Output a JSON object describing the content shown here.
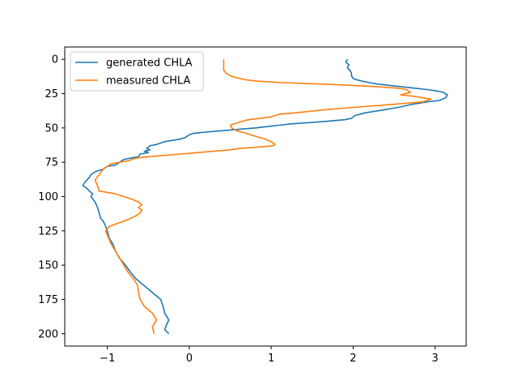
{
  "chart_data": {
    "type": "line",
    "title": "",
    "xlabel": "",
    "ylabel": "",
    "xlim": [
      -1.52,
      3.38
    ],
    "ylim": [
      209,
      -9
    ],
    "y_inverted": true,
    "grid": false,
    "legend_position": "top-left",
    "x_ticks": [
      {
        "value": -1,
        "label": "−1"
      },
      {
        "value": 0,
        "label": "0"
      },
      {
        "value": 1,
        "label": "1"
      },
      {
        "value": 2,
        "label": "2"
      },
      {
        "value": 3,
        "label": "3"
      }
    ],
    "y_ticks": [
      {
        "value": 0,
        "label": "0"
      },
      {
        "value": 25,
        "label": "25"
      },
      {
        "value": 50,
        "label": "50"
      },
      {
        "value": 75,
        "label": "75"
      },
      {
        "value": 100,
        "label": "100"
      },
      {
        "value": 125,
        "label": "125"
      },
      {
        "value": 150,
        "label": "150"
      },
      {
        "value": 175,
        "label": "175"
      },
      {
        "value": 200,
        "label": "200"
      }
    ],
    "series": [
      {
        "name": "generated CHLA",
        "color": "#1f77b4",
        "points": [
          [
            1.93,
            0
          ],
          [
            1.91,
            2
          ],
          [
            1.95,
            4
          ],
          [
            1.93,
            6
          ],
          [
            1.96,
            8
          ],
          [
            1.98,
            10
          ],
          [
            1.98,
            12
          ],
          [
            2.0,
            14
          ],
          [
            2.05,
            15
          ],
          [
            2.12,
            16
          ],
          [
            2.2,
            17
          ],
          [
            2.3,
            18
          ],
          [
            2.45,
            19
          ],
          [
            2.6,
            20
          ],
          [
            2.75,
            21
          ],
          [
            2.9,
            22
          ],
          [
            3.02,
            23
          ],
          [
            3.1,
            24
          ],
          [
            3.15,
            26
          ],
          [
            3.13,
            28
          ],
          [
            3.05,
            30
          ],
          [
            2.9,
            31
          ],
          [
            2.8,
            32
          ],
          [
            2.7,
            33
          ],
          [
            2.55,
            35
          ],
          [
            2.35,
            37
          ],
          [
            2.15,
            39
          ],
          [
            2.02,
            41
          ],
          [
            1.98,
            43
          ],
          [
            1.9,
            44
          ],
          [
            1.7,
            45
          ],
          [
            1.5,
            46
          ],
          [
            1.25,
            47
          ],
          [
            1.1,
            48
          ],
          [
            0.95,
            49
          ],
          [
            0.8,
            50
          ],
          [
            0.6,
            51
          ],
          [
            0.4,
            52
          ],
          [
            0.2,
            53
          ],
          [
            0.05,
            54
          ],
          [
            0.0,
            55
          ],
          [
            -0.05,
            57
          ],
          [
            -0.1,
            58
          ],
          [
            -0.2,
            59
          ],
          [
            -0.3,
            60
          ],
          [
            -0.4,
            62
          ],
          [
            -0.48,
            63
          ],
          [
            -0.52,
            65
          ],
          [
            -0.48,
            66
          ],
          [
            -0.55,
            67
          ],
          [
            -0.5,
            68
          ],
          [
            -0.6,
            69
          ],
          [
            -0.62,
            71
          ],
          [
            -0.72,
            72
          ],
          [
            -0.8,
            73
          ],
          [
            -0.85,
            75
          ],
          [
            -0.9,
            77
          ],
          [
            -1.0,
            78
          ],
          [
            -1.05,
            80
          ],
          [
            -1.15,
            82
          ],
          [
            -1.2,
            84
          ],
          [
            -1.22,
            86
          ],
          [
            -1.25,
            88
          ],
          [
            -1.28,
            90
          ],
          [
            -1.3,
            92
          ],
          [
            -1.25,
            94
          ],
          [
            -1.22,
            96
          ],
          [
            -1.18,
            98
          ],
          [
            -1.2,
            100
          ],
          [
            -1.15,
            104
          ],
          [
            -1.12,
            108
          ],
          [
            -1.1,
            112
          ],
          [
            -1.08,
            116
          ],
          [
            -1.05,
            118
          ],
          [
            -1.02,
            122
          ],
          [
            -1.0,
            125
          ],
          [
            -0.98,
            130
          ],
          [
            -0.93,
            135
          ],
          [
            -0.9,
            140
          ],
          [
            -0.85,
            145
          ],
          [
            -0.78,
            150
          ],
          [
            -0.72,
            155
          ],
          [
            -0.65,
            160
          ],
          [
            -0.55,
            165
          ],
          [
            -0.45,
            170
          ],
          [
            -0.35,
            175
          ],
          [
            -0.32,
            180
          ],
          [
            -0.3,
            185
          ],
          [
            -0.25,
            190
          ],
          [
            -0.28,
            194
          ],
          [
            -0.3,
            197
          ],
          [
            -0.25,
            200
          ]
        ]
      },
      {
        "name": "measured CHLA",
        "color": "#ff7f0e",
        "points": [
          [
            0.42,
            0
          ],
          [
            0.42,
            4
          ],
          [
            0.42,
            8
          ],
          [
            0.45,
            10
          ],
          [
            0.5,
            12
          ],
          [
            0.55,
            13
          ],
          [
            0.62,
            14
          ],
          [
            0.7,
            15
          ],
          [
            0.85,
            16
          ],
          [
            1.15,
            17
          ],
          [
            1.6,
            18
          ],
          [
            2.0,
            19
          ],
          [
            2.3,
            20
          ],
          [
            2.55,
            21
          ],
          [
            2.65,
            22
          ],
          [
            2.7,
            24
          ],
          [
            2.58,
            26
          ],
          [
            2.75,
            27
          ],
          [
            2.95,
            29
          ],
          [
            2.85,
            31
          ],
          [
            2.45,
            33
          ],
          [
            2.0,
            35
          ],
          [
            1.6,
            37
          ],
          [
            1.3,
            39
          ],
          [
            1.1,
            40
          ],
          [
            1.0,
            42
          ],
          [
            0.72,
            44
          ],
          [
            0.6,
            46
          ],
          [
            0.5,
            48
          ],
          [
            0.52,
            50
          ],
          [
            0.58,
            52
          ],
          [
            0.7,
            54
          ],
          [
            0.8,
            56
          ],
          [
            0.92,
            58
          ],
          [
            1.0,
            60
          ],
          [
            1.05,
            62
          ],
          [
            1.02,
            63
          ],
          [
            0.82,
            64
          ],
          [
            0.6,
            65
          ],
          [
            0.5,
            66
          ],
          [
            0.3,
            67
          ],
          [
            0.1,
            68
          ],
          [
            -0.1,
            69
          ],
          [
            -0.3,
            70
          ],
          [
            -0.5,
            71
          ],
          [
            -0.65,
            72
          ],
          [
            -0.75,
            74
          ],
          [
            -0.95,
            76
          ],
          [
            -1.0,
            78
          ],
          [
            -1.05,
            80
          ],
          [
            -1.1,
            84
          ],
          [
            -1.15,
            88
          ],
          [
            -1.12,
            92
          ],
          [
            -1.1,
            96
          ],
          [
            -1.0,
            97
          ],
          [
            -0.9,
            98
          ],
          [
            -0.8,
            100
          ],
          [
            -0.7,
            102
          ],
          [
            -0.62,
            104
          ],
          [
            -0.58,
            106
          ],
          [
            -0.62,
            108
          ],
          [
            -0.58,
            110
          ],
          [
            -0.6,
            112
          ],
          [
            -0.65,
            114
          ],
          [
            -0.72,
            116
          ],
          [
            -0.8,
            118
          ],
          [
            -0.9,
            120
          ],
          [
            -0.98,
            122
          ],
          [
            -1.02,
            125
          ],
          [
            -1.0,
            128
          ],
          [
            -0.98,
            131
          ],
          [
            -0.95,
            135
          ],
          [
            -0.9,
            140
          ],
          [
            -0.85,
            145
          ],
          [
            -0.8,
            150
          ],
          [
            -0.75,
            155
          ],
          [
            -0.68,
            160
          ],
          [
            -0.63,
            165
          ],
          [
            -0.62,
            170
          ],
          [
            -0.6,
            175
          ],
          [
            -0.55,
            180
          ],
          [
            -0.45,
            185
          ],
          [
            -0.4,
            190
          ],
          [
            -0.45,
            195
          ],
          [
            -0.43,
            200
          ]
        ]
      }
    ]
  }
}
